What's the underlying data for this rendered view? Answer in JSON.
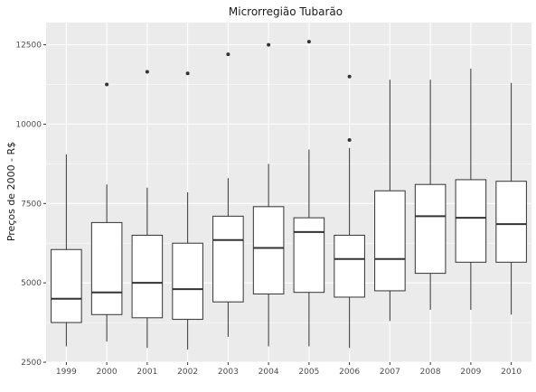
{
  "chart_data": {
    "type": "box",
    "title": "Microrregião  Tubarão",
    "xlabel": "",
    "ylabel": "Preços de 2000 - R$",
    "categories": [
      "1999",
      "2000",
      "2001",
      "2002",
      "2003",
      "2004",
      "2005",
      "2006",
      "2007",
      "2008",
      "2009",
      "2010"
    ],
    "ylim": [
      2500,
      13200
    ],
    "yticks": [
      2500,
      5000,
      7500,
      10000,
      12500
    ],
    "grid": true,
    "boxes": [
      {
        "min": 3000,
        "q1": 3750,
        "median": 4500,
        "q3": 6050,
        "max": 9050,
        "outliers": []
      },
      {
        "min": 3150,
        "q1": 4000,
        "median": 4700,
        "q3": 6900,
        "max": 8100,
        "outliers": [
          11250
        ]
      },
      {
        "min": 2950,
        "q1": 3900,
        "median": 5000,
        "q3": 6500,
        "max": 8000,
        "outliers": [
          11650
        ]
      },
      {
        "min": 2900,
        "q1": 3850,
        "median": 4800,
        "q3": 6250,
        "max": 7850,
        "outliers": [
          11600
        ]
      },
      {
        "min": 3300,
        "q1": 4400,
        "median": 6350,
        "q3": 7100,
        "max": 8300,
        "outliers": [
          12200
        ]
      },
      {
        "min": 3000,
        "q1": 4650,
        "median": 6100,
        "q3": 7400,
        "max": 8750,
        "outliers": [
          12500
        ]
      },
      {
        "min": 3000,
        "q1": 4700,
        "median": 6600,
        "q3": 7050,
        "max": 9200,
        "outliers": [
          12600
        ]
      },
      {
        "min": 2950,
        "q1": 4550,
        "median": 5750,
        "q3": 6500,
        "max": 9250,
        "outliers": [
          9500,
          11500
        ]
      },
      {
        "min": 3800,
        "q1": 4750,
        "median": 5750,
        "q3": 7900,
        "max": 11400,
        "outliers": []
      },
      {
        "min": 4150,
        "q1": 5300,
        "median": 7100,
        "q3": 8100,
        "max": 11400,
        "outliers": []
      },
      {
        "min": 4150,
        "q1": 5650,
        "median": 7050,
        "q3": 8250,
        "max": 11750,
        "outliers": []
      },
      {
        "min": 4000,
        "q1": 5650,
        "median": 6850,
        "q3": 8200,
        "max": 11300,
        "outliers": []
      }
    ],
    "colors": {
      "panel": "#ebebeb",
      "grid_major": "#ffffff",
      "box_fill": "#ffffff",
      "box_stroke": "#333333"
    }
  }
}
